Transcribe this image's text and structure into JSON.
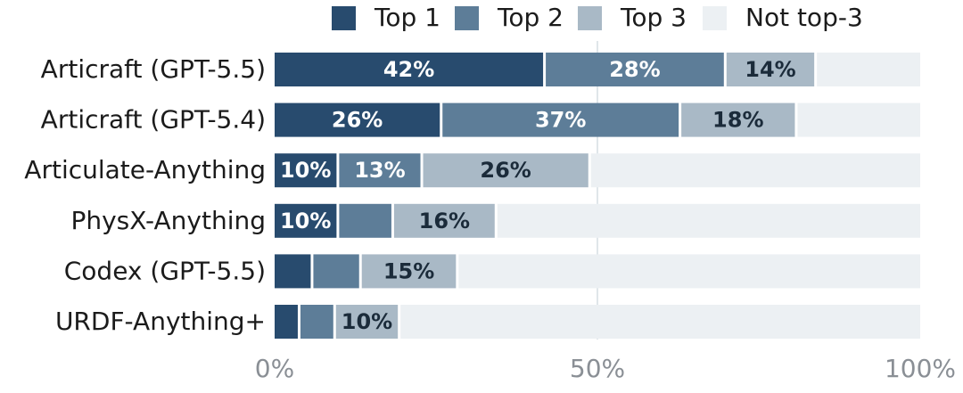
{
  "chart_data": {
    "type": "bar",
    "orientation": "horizontal",
    "stacked": true,
    "title": "",
    "xlabel": "",
    "ylabel": "",
    "xlim": [
      0,
      100
    ],
    "xticks": [
      "0%",
      "50%",
      "100%"
    ],
    "legend_position": "top",
    "grid": "vertical at 50%",
    "categories": [
      "Articraft (GPT-5.5)",
      "Articraft (GPT-5.4)",
      "Articulate-Anything",
      "PhysX-Anything",
      "Codex (GPT-5.5)",
      "URDF-Anything+"
    ],
    "series": [
      {
        "name": "Top 1",
        "color": "#284b6e",
        "label_color": "#ffffff",
        "values": [
          42,
          26,
          10,
          10,
          6,
          4
        ],
        "labels": [
          "42%",
          "26%",
          "10%",
          "10%",
          "",
          ""
        ]
      },
      {
        "name": "Top 2",
        "color": "#5d7d98",
        "label_color": "#ffffff",
        "values": [
          28,
          37,
          13,
          8.5,
          7.5,
          5.5
        ],
        "labels": [
          "28%",
          "37%",
          "13%",
          "",
          "",
          ""
        ]
      },
      {
        "name": "Top 3",
        "color": "#a9b9c6",
        "label_color": "#1b2b3a",
        "values": [
          14,
          18,
          26,
          16,
          15,
          10
        ],
        "labels": [
          "14%",
          "18%",
          "26%",
          "16%",
          "15%",
          "10%"
        ]
      },
      {
        "name": "Not top-3",
        "color": "#ecf0f3",
        "label_color": "#1b2b3a",
        "values": [
          16,
          19,
          51,
          65.5,
          71.5,
          80.5
        ],
        "labels": [
          "",
          "",
          "",
          "",
          "",
          ""
        ]
      }
    ]
  }
}
